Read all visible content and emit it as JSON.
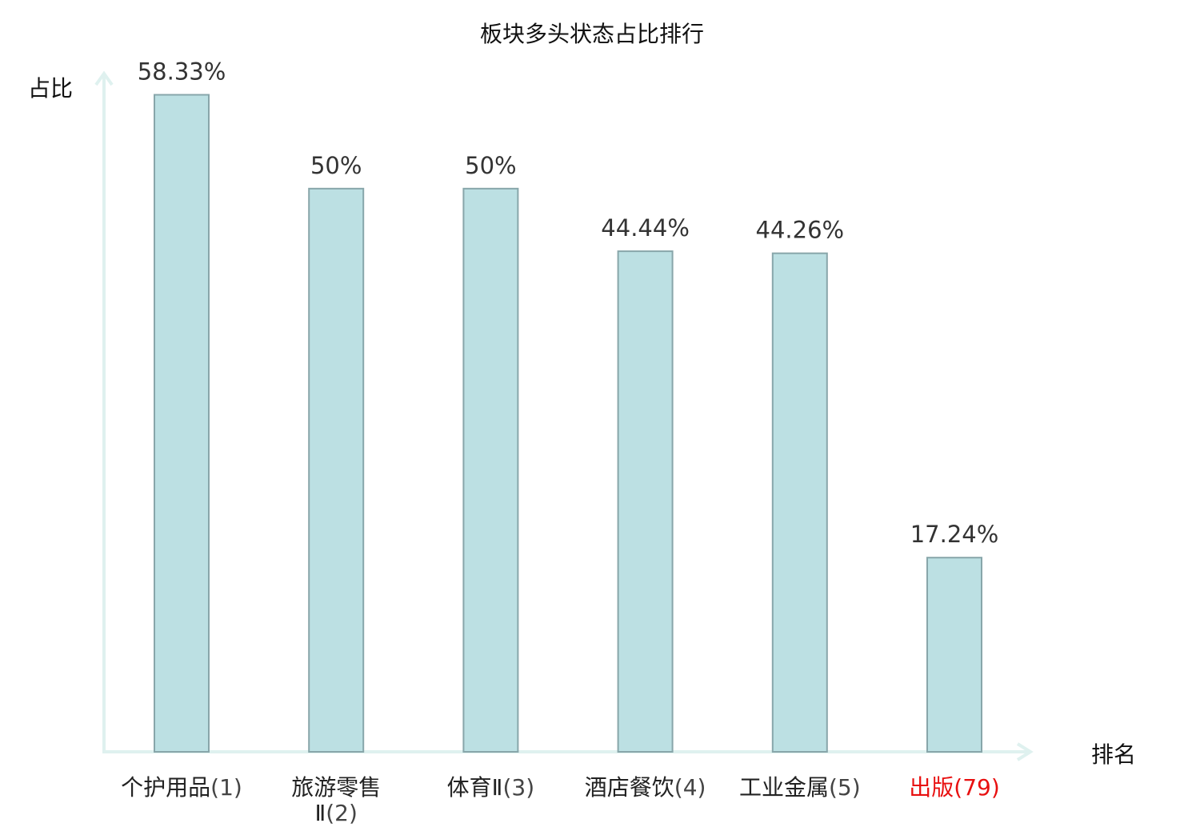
{
  "chart_data": {
    "type": "bar",
    "title": "板块多头状态占比排行",
    "ylabel": "占比",
    "xlabel": "排名",
    "ylim": [
      0,
      60
    ],
    "grid": false,
    "categories": [
      {
        "name": "个护用品",
        "rank": "(1)",
        "highlight": false
      },
      {
        "name": "旅游零售Ⅱ",
        "rank": "(2)",
        "highlight": false
      },
      {
        "name": "体育Ⅱ",
        "rank": "(3)",
        "highlight": false
      },
      {
        "name": "酒店餐饮",
        "rank": "(4)",
        "highlight": false
      },
      {
        "name": "工业金属",
        "rank": "(5)",
        "highlight": false
      },
      {
        "name": "出版",
        "rank": "(79)",
        "highlight": true
      }
    ],
    "values": [
      58.33,
      50,
      50,
      44.44,
      44.26,
      17.24
    ],
    "value_labels": [
      "58.33%",
      "50%",
      "50%",
      "44.44%",
      "44.26%",
      "17.24%"
    ],
    "colors": {
      "bar_fill": "#bce0e3",
      "bar_stroke": "#88a6aa",
      "axis": "#dff1ef",
      "text": "#222222",
      "value_text": "#333333",
      "rank_text": "#444444",
      "highlight": "#e81010"
    }
  }
}
